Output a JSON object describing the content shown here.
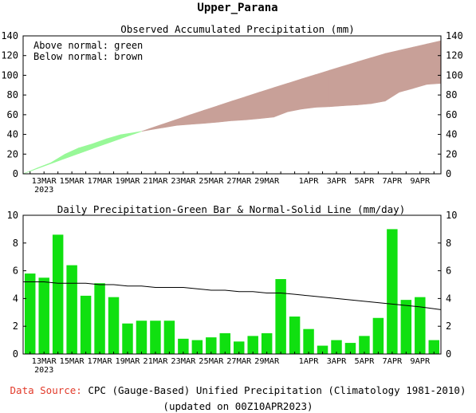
{
  "page_title": "Upper_Parana",
  "footer": {
    "source_label": "Data Source:",
    "source_text": "CPC (Gauge-Based) Unified Precipitation (Climatology 1981-2010)",
    "updated": "(updated on 00Z10APR2023)"
  },
  "colors": {
    "above_normal": "#98f898",
    "below_normal": "#c8a098",
    "daily_bar": "#10e010",
    "normal_line": "#000000",
    "source_label": "#e23a2a"
  },
  "chart_data": [
    {
      "type": "area",
      "title": "Observed Accumulated Precipitation (mm)",
      "annotations": [
        "Above normal: green",
        "Below normal: brown"
      ],
      "x": [
        "12MAR",
        "13MAR",
        "14MAR",
        "15MAR",
        "16MAR",
        "17MAR",
        "18MAR",
        "19MAR",
        "20MAR",
        "21MAR",
        "22MAR",
        "23MAR",
        "24MAR",
        "25MAR",
        "26MAR",
        "27MAR",
        "28MAR",
        "29MAR",
        "30MAR",
        "31MAR",
        "1APR",
        "2APR",
        "3APR",
        "4APR",
        "5APR",
        "6APR",
        "7APR",
        "8APR",
        "9APR",
        "10APR"
      ],
      "x_tick_labels": [
        "13MAR",
        "15MAR",
        "17MAR",
        "19MAR",
        "21MAR",
        "23MAR",
        "25MAR",
        "27MAR",
        "29MAR",
        "1APR",
        "3APR",
        "5APR",
        "7APR",
        "9APR"
      ],
      "x_tick_dates": [
        "13MAR",
        "15MAR",
        "17MAR",
        "19MAR",
        "21MAR",
        "23MAR",
        "25MAR",
        "27MAR",
        "29MAR",
        "1APR",
        "3APR",
        "5APR",
        "7APR",
        "9APR"
      ],
      "year_label": "2023",
      "series": [
        {
          "name": "observed",
          "values": [
            5.8,
            11.3,
            19.9,
            26.3,
            30.5,
            35.6,
            39.7,
            41.9,
            44.3,
            46.7,
            49.1,
            50.2,
            51.2,
            52.4,
            53.9,
            54.8,
            56.1,
            57.6,
            63.0,
            65.7,
            67.5,
            68.1,
            69.1,
            69.9,
            71.2,
            73.8,
            82.8,
            86.7,
            90.8,
            91.8
          ]
        },
        {
          "name": "normal",
          "values": [
            5.2,
            10.4,
            15.5,
            20.6,
            25.7,
            30.7,
            35.7,
            40.6,
            45.5,
            50.3,
            55.1,
            59.9,
            64.6,
            69.2,
            73.9,
            78.4,
            83.0,
            87.5,
            91.9,
            96.4,
            100.7,
            105.1,
            109.4,
            113.7,
            117.9,
            122.1,
            125.3,
            128.6,
            131.8,
            135.0
          ]
        }
      ],
      "ylim": [
        0,
        140
      ],
      "yticks": [
        0,
        20,
        40,
        60,
        80,
        100,
        120,
        140
      ],
      "grid": false
    },
    {
      "type": "bar",
      "title": "Daily Precipitation-Green Bar & Normal-Solid Line (mm/day)",
      "x": [
        "12MAR",
        "13MAR",
        "14MAR",
        "15MAR",
        "16MAR",
        "17MAR",
        "18MAR",
        "19MAR",
        "20MAR",
        "21MAR",
        "22MAR",
        "23MAR",
        "24MAR",
        "25MAR",
        "26MAR",
        "27MAR",
        "28MAR",
        "29MAR",
        "30MAR",
        "31MAR",
        "1APR",
        "2APR",
        "3APR",
        "4APR",
        "5APR",
        "6APR",
        "7APR",
        "8APR",
        "9APR",
        "10APR"
      ],
      "x_tick_labels": [
        "13MAR",
        "15MAR",
        "17MAR",
        "19MAR",
        "21MAR",
        "23MAR",
        "25MAR",
        "27MAR",
        "29MAR",
        "1APR",
        "3APR",
        "5APR",
        "7APR",
        "9APR"
      ],
      "year_label": "2023",
      "series": [
        {
          "name": "daily",
          "values": [
            5.8,
            5.5,
            8.6,
            6.4,
            4.2,
            5.1,
            4.1,
            2.2,
            2.4,
            2.4,
            2.4,
            1.1,
            1.0,
            1.2,
            1.5,
            0.9,
            1.3,
            1.5,
            5.4,
            2.7,
            1.8,
            0.6,
            1.0,
            0.8,
            1.3,
            2.6,
            9.0,
            3.9,
            4.1,
            1.0
          ]
        },
        {
          "name": "normal",
          "values": [
            5.2,
            5.2,
            5.1,
            5.1,
            5.1,
            5.0,
            5.0,
            4.9,
            4.9,
            4.8,
            4.8,
            4.8,
            4.7,
            4.6,
            4.6,
            4.5,
            4.5,
            4.4,
            4.4,
            4.3,
            4.2,
            4.1,
            4.0,
            3.9,
            3.8,
            3.7,
            3.6,
            3.5,
            3.4,
            3.2
          ]
        }
      ],
      "ylim": [
        0,
        10
      ],
      "yticks": [
        0,
        2,
        4,
        6,
        8,
        10
      ],
      "grid": false
    }
  ]
}
